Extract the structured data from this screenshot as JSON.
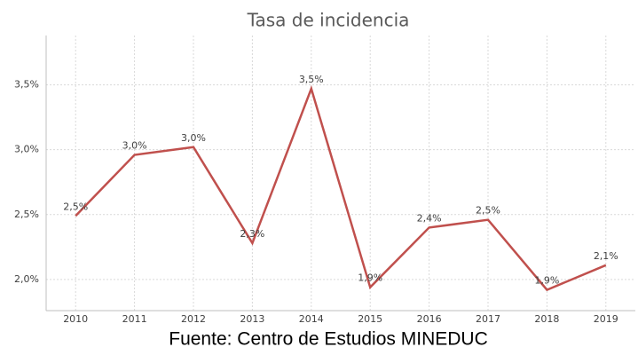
{
  "chart_data": {
    "type": "line",
    "title": "Tasa de incidencia",
    "source": "Fuente:  Centro de Estudios MINEDUC",
    "categories": [
      "2010",
      "2011",
      "2012",
      "2013",
      "2014",
      "2015",
      "2016",
      "2017",
      "2018",
      "2019"
    ],
    "series": [
      {
        "name": "Tasa de incidencia",
        "color": "#c0504d",
        "values": [
          2.49,
          2.96,
          3.02,
          2.28,
          3.47,
          1.94,
          2.4,
          2.46,
          1.92,
          2.11
        ],
        "value_labels": [
          "2,5%",
          "3,0%",
          "3,0%",
          "2,3%",
          "3,5%",
          "1,9%",
          "2,4%",
          "2,5%",
          "1,9%",
          "2,1%"
        ]
      }
    ],
    "ylim": [
      1.76,
      3.88
    ],
    "yticks": [
      {
        "value": 2,
        "label": "2,0%"
      },
      {
        "value": 2.5,
        "label": "2,5%"
      },
      {
        "value": 3,
        "label": "3,0%"
      },
      {
        "value": 3.5,
        "label": "3,5%"
      }
    ],
    "grid": true
  }
}
